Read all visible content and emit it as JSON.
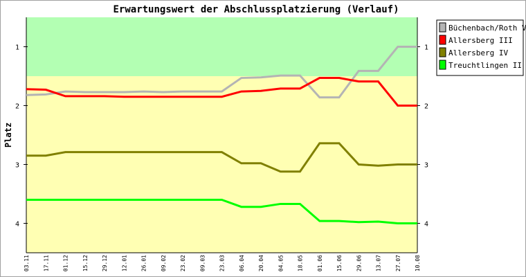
{
  "chart_data": {
    "type": "line",
    "title": "Erwartungswert der Abschlussplatzierung (Verlauf)",
    "xlabel": "",
    "ylabel": "Platz",
    "ylim": [
      0.5,
      4.5
    ],
    "y_inverted": true,
    "yticks": [
      1,
      2,
      3,
      4
    ],
    "bands": [
      {
        "from": 0.5,
        "to": 1.5,
        "color": "#b3ffb3"
      },
      {
        "from": 1.5,
        "to": 4.5,
        "color": "#ffffb3"
      }
    ],
    "legend_position": "right",
    "x": [
      "03.11",
      "17.11",
      "01.12",
      "15.12",
      "29.12",
      "12.01",
      "26.01",
      "09.02",
      "23.02",
      "09.03",
      "23.03",
      "06.04",
      "20.04",
      "04.05",
      "18.05",
      "01.06",
      "15.06",
      "29.06",
      "13.07",
      "27.07",
      "10.08"
    ],
    "series": [
      {
        "name": "Büchenbach/Roth V",
        "color": "#b4b4b4",
        "values": [
          1.82,
          1.81,
          1.76,
          1.77,
          1.77,
          1.77,
          1.76,
          1.77,
          1.76,
          1.76,
          1.76,
          1.53,
          1.52,
          1.49,
          1.49,
          1.86,
          1.86,
          1.41,
          1.41,
          1.0,
          1.0
        ]
      },
      {
        "name": "Allersberg III",
        "color": "#ff0000",
        "values": [
          1.72,
          1.73,
          1.84,
          1.84,
          1.84,
          1.85,
          1.85,
          1.85,
          1.85,
          1.85,
          1.85,
          1.76,
          1.75,
          1.71,
          1.71,
          1.53,
          1.53,
          1.59,
          1.59,
          2.0,
          2.0
        ]
      },
      {
        "name": "Allersberg IV",
        "color": "#808000",
        "values": [
          2.85,
          2.85,
          2.79,
          2.79,
          2.79,
          2.79,
          2.79,
          2.79,
          2.79,
          2.79,
          2.79,
          2.98,
          2.98,
          3.12,
          3.12,
          2.64,
          2.64,
          3.0,
          3.02,
          3.0,
          3.0
        ]
      },
      {
        "name": "Treuchtlingen II",
        "color": "#00ff00",
        "values": [
          3.6,
          3.6,
          3.6,
          3.6,
          3.6,
          3.6,
          3.6,
          3.6,
          3.6,
          3.6,
          3.6,
          3.72,
          3.72,
          3.67,
          3.67,
          3.96,
          3.96,
          3.98,
          3.97,
          4.0,
          4.0
        ]
      }
    ]
  }
}
